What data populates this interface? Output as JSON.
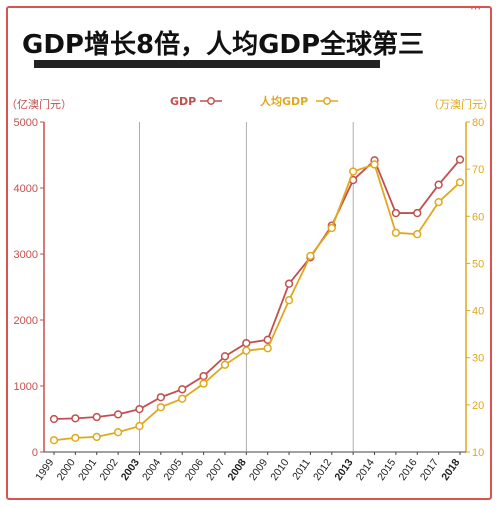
{
  "title": "GDP增长8倍，人均GDP全球第三",
  "menu_glyph": "⋯",
  "colors": {
    "gdp": "#c0504d",
    "per_capita": "#e0a81c",
    "accent": "#d9534f",
    "grid": "#999999"
  },
  "chart_data": {
    "type": "line",
    "title": "GDP增长8倍，人均GDP全球第三",
    "x": [
      "1999",
      "2000",
      "2001",
      "2002",
      "2003",
      "2004",
      "2005",
      "2006",
      "2007",
      "2008",
      "2009",
      "2010",
      "2011",
      "2012",
      "2013",
      "2014",
      "2015",
      "2016",
      "2017",
      "2018"
    ],
    "bold_x": [
      "2003",
      "2008",
      "2013",
      "2018"
    ],
    "vlines_at": [
      "2003",
      "2008",
      "2013"
    ],
    "left_axis": {
      "label": "（亿澳门元）",
      "ylim": [
        0,
        5000
      ],
      "ticks": [
        0,
        1000,
        2000,
        3000,
        4000,
        5000
      ]
    },
    "right_axis": {
      "label": "（万澳门元）",
      "ylim": [
        10,
        80
      ],
      "ticks": [
        10,
        20,
        30,
        40,
        50,
        60,
        70,
        80
      ]
    },
    "series": [
      {
        "name": "GDP",
        "axis": "left",
        "color": "#c0504d",
        "values": [
          500,
          510,
          530,
          570,
          650,
          830,
          950,
          1150,
          1450,
          1650,
          1700,
          2550,
          2950,
          3430,
          4120,
          4420,
          3620,
          3620,
          4050,
          4430
        ]
      },
      {
        "name": "人均GDP",
        "axis": "right",
        "color": "#e0a81c",
        "values": [
          12.5,
          13,
          13.2,
          14.2,
          15.5,
          19.5,
          21.3,
          24.5,
          28.5,
          31.5,
          32,
          42.2,
          51.6,
          57.5,
          69.5,
          71,
          56.5,
          56.2,
          63,
          67.2
        ]
      }
    ],
    "grid": false,
    "legend": "top-center"
  }
}
